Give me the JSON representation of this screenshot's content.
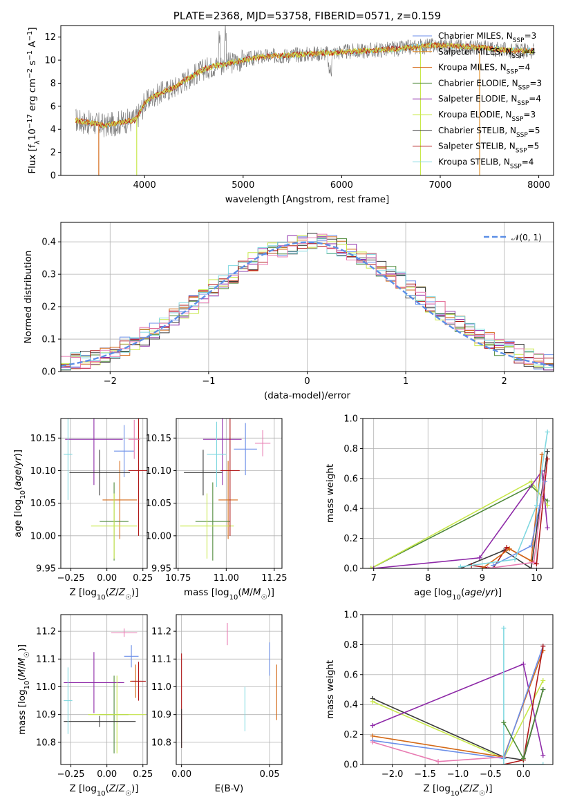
{
  "colors": {
    "chabrier_miles": "#6a8ee8",
    "salpeter_miles": "#e2902a",
    "kroupa_miles": "#d46a18",
    "chabrier_elodie": "#4f8a3a",
    "salpeter_elodie": "#8e2aa8",
    "kroupa_elodie": "#c8e84a",
    "chabrier_stelib": "#3a3a3a",
    "salpeter_stelib": "#b01818",
    "kroupa_stelib": "#7fd8e0",
    "pink": "#e87bb2",
    "gray_spec": "#808080",
    "gauss": "#5b8ee6"
  },
  "chart_data": [
    {
      "id": "spectrum",
      "type": "line",
      "title": "PLATE=2368, MJD=53758, FIBERID=0571, z=0.159",
      "xlabel": "wavelength [Angstrom, rest frame]",
      "ylabel": "Flux [f_λ 10^-17 erg cm^-2 s^-1 A^-1]",
      "xlim": [
        3150,
        8150
      ],
      "ylim": [
        0,
        13
      ],
      "xticks": [
        "4000",
        "5000",
        "6000",
        "7000",
        "8000"
      ],
      "yticks": [
        "0",
        "2",
        "4",
        "6",
        "8",
        "10",
        "12"
      ],
      "legend_position": "top-right",
      "legend": [
        {
          "label": "Chabrier MILES, N",
          "sub": "SSP",
          "tail": "=3",
          "color": "chabrier_miles"
        },
        {
          "label": "Salpeter MILES, N",
          "sub": "SSP",
          "tail": "=4",
          "color": "salpeter_miles"
        },
        {
          "label": "Kroupa MILES, N",
          "sub": "SSP",
          "tail": "=4",
          "color": "kroupa_miles"
        },
        {
          "label": "Chabrier ELODIE, N",
          "sub": "SSP",
          "tail": "=3",
          "color": "chabrier_elodie"
        },
        {
          "label": "Salpeter ELODIE, N",
          "sub": "SSP",
          "tail": "=4",
          "color": "salpeter_elodie"
        },
        {
          "label": "Kroupa ELODIE, N",
          "sub": "SSP",
          "tail": "=3",
          "color": "kroupa_elodie"
        },
        {
          "label": "Chabrier STELIB, N",
          "sub": "SSP",
          "tail": "=5",
          "color": "chabrier_stelib"
        },
        {
          "label": "Salpeter STELIB, N",
          "sub": "SSP",
          "tail": "=5",
          "color": "salpeter_stelib"
        },
        {
          "label": "Kroupa STELIB, N",
          "sub": "SSP",
          "tail": "=4",
          "color": "kroupa_stelib"
        }
      ],
      "continuum": {
        "x": [
          3300,
          3400,
          3500,
          3600,
          3700,
          3800,
          3900,
          3950,
          4000,
          4100,
          4200,
          4300,
          4400,
          4500,
          4600,
          4700,
          4800,
          4900,
          5000,
          5200,
          5400,
          5600,
          5800,
          6000,
          6200,
          6400,
          6600,
          6800,
          7000,
          7200,
          7400,
          7600,
          7800,
          7950
        ],
        "y": [
          4.8,
          4.6,
          4.5,
          4.3,
          4.5,
          4.7,
          4.8,
          5.4,
          6.3,
          6.9,
          7.3,
          7.6,
          8.2,
          8.7,
          9.2,
          9.5,
          9.6,
          9.8,
          10.0,
          10.3,
          10.4,
          10.5,
          10.6,
          10.7,
          10.8,
          10.9,
          11.0,
          11.2,
          11.3,
          11.2,
          11.1,
          10.9,
          10.8,
          10.8
        ]
      },
      "model_dropouts": [
        {
          "x": 3535,
          "y": 0,
          "color": "kroupa_miles"
        },
        {
          "x": 3920,
          "y": 0,
          "color": "kroupa_elodie"
        },
        {
          "x": 6800,
          "y": 0,
          "color": "kroupa_elodie"
        },
        {
          "x": 7400,
          "y": 0,
          "color": "salpeter_miles"
        }
      ]
    },
    {
      "id": "residuals",
      "type": "area",
      "xlabel": "(data-model)/error",
      "ylabel": "Normed distribution",
      "xlim": [
        -2.5,
        2.5
      ],
      "ylim": [
        0,
        0.46
      ],
      "xticks": [
        "−2",
        "−1",
        "0",
        "1",
        "2"
      ],
      "yticks": [
        "0.0",
        "0.1",
        "0.2",
        "0.3",
        "0.4"
      ],
      "grid": true,
      "legend_position": "top-right",
      "legend_label": "𝒩(0, 1)",
      "bin_width": 0.1,
      "series_colors": [
        "chabrier_miles",
        "kroupa_miles",
        "chabrier_elodie",
        "salpeter_elodie",
        "kroupa_elodie",
        "chabrier_stelib",
        "salpeter_stelib",
        "kroupa_stelib",
        "pink"
      ]
    },
    {
      "id": "age_vs_Z",
      "type": "scatter",
      "xlabel": "Z [log10(Z/Z☉)]",
      "ylabel": "age  [log10(age/yr)]",
      "xlim": [
        -0.32,
        0.28
      ],
      "ylim": [
        9.95,
        10.18
      ],
      "xticks": [
        "−0.25",
        "0.00",
        "0.25"
      ],
      "yticks": [
        "9.95",
        "10.00",
        "10.05",
        "10.10",
        "10.15"
      ],
      "grid": true,
      "points": [
        {
          "x": 0.12,
          "y": 10.13,
          "xerr": 0.07,
          "yerr": 0.04,
          "color": "chabrier_miles"
        },
        {
          "x": 0.09,
          "y": 10.055,
          "xerr": 0.12,
          "yerr": 0.06,
          "color": "kroupa_miles"
        },
        {
          "x": 0.05,
          "y": 10.022,
          "xerr": 0.1,
          "yerr": 0.06,
          "color": "chabrier_elodie"
        },
        {
          "x": -0.09,
          "y": 10.148,
          "xerr": 0.2,
          "yerr": 0.07,
          "color": "salpeter_elodie"
        },
        {
          "x": 0.05,
          "y": 10.015,
          "xerr": 0.16,
          "yerr": 0.05,
          "color": "kroupa_elodie"
        },
        {
          "x": -0.05,
          "y": 10.097,
          "xerr": 0.21,
          "yerr": 0.035,
          "color": "chabrier_stelib"
        },
        {
          "x": 0.22,
          "y": 10.1,
          "xerr": 0.07,
          "yerr": 0.1,
          "color": "salpeter_stelib"
        },
        {
          "x": -0.27,
          "y": 10.125,
          "xerr": 0.03,
          "yerr": 0.07,
          "color": "kroupa_stelib"
        },
        {
          "x": 0.19,
          "y": 10.148,
          "xerr": 0.04,
          "yerr": 0.03,
          "color": "pink"
        }
      ]
    },
    {
      "id": "age_vs_mass",
      "type": "scatter",
      "xlabel": "mass [log10(M/M☉)]",
      "ylabel": "",
      "xlim": [
        10.74,
        11.29
      ],
      "ylim": [
        9.95,
        10.18
      ],
      "xticks": [
        "10.75",
        "11.00",
        "11.25"
      ],
      "yticks": [
        "9.95",
        "10.00",
        "10.05",
        "10.10",
        "10.15"
      ],
      "grid": true,
      "points": [
        {
          "x": 11.1,
          "y": 10.133,
          "xerr": 0.06,
          "yerr": 0.04,
          "color": "chabrier_miles"
        },
        {
          "x": 11.01,
          "y": 10.055,
          "xerr": 0.05,
          "yerr": 0.06,
          "color": "kroupa_miles"
        },
        {
          "x": 10.93,
          "y": 10.022,
          "xerr": 0.09,
          "yerr": 0.06,
          "color": "chabrier_elodie"
        },
        {
          "x": 10.98,
          "y": 10.148,
          "xerr": 0.1,
          "yerr": 0.07,
          "color": "salpeter_elodie"
        },
        {
          "x": 10.9,
          "y": 10.015,
          "xerr": 0.14,
          "yerr": 0.05,
          "color": "kroupa_elodie"
        },
        {
          "x": 10.88,
          "y": 10.097,
          "xerr": 0.1,
          "yerr": 0.035,
          "color": "chabrier_stelib"
        },
        {
          "x": 11.02,
          "y": 10.1,
          "xerr": 0.05,
          "yerr": 0.1,
          "color": "salpeter_stelib"
        },
        {
          "x": 10.95,
          "y": 10.125,
          "xerr": 0.05,
          "yerr": 0.05,
          "color": "kroupa_stelib"
        },
        {
          "x": 11.19,
          "y": 10.142,
          "xerr": 0.04,
          "yerr": 0.02,
          "color": "pink"
        }
      ]
    },
    {
      "id": "weight_vs_age",
      "type": "line",
      "xlabel": "age  [log10(age/yr)]",
      "ylabel": "mass weight",
      "xlim": [
        6.8,
        10.3
      ],
      "ylim": [
        0,
        1.0
      ],
      "xticks": [
        "7",
        "8",
        "9",
        "10"
      ],
      "yticks": [
        "0.0",
        "0.2",
        "0.4",
        "0.6",
        "0.8",
        "1.0"
      ],
      "grid": true,
      "series": [
        {
          "color": "chabrier_elodie",
          "x": [
            6.95,
            9.9,
            10.2
          ],
          "y": [
            0.0,
            0.55,
            0.45
          ]
        },
        {
          "color": "kroupa_elodie",
          "x": [
            6.95,
            9.9,
            10.2
          ],
          "y": [
            0.0,
            0.58,
            0.42
          ]
        },
        {
          "color": "salpeter_elodie",
          "x": [
            7.0,
            8.95,
            10.1,
            10.2
          ],
          "y": [
            0.0,
            0.07,
            0.65,
            0.27
          ]
        },
        {
          "color": "chabrier_stelib",
          "x": [
            8.6,
            9.4,
            9.9,
            10.2
          ],
          "y": [
            0.0,
            0.12,
            0.0,
            0.78
          ]
        },
        {
          "color": "salpeter_stelib",
          "x": [
            8.8,
            9.2,
            9.45,
            10.0,
            10.2
          ],
          "y": [
            0.02,
            0.0,
            0.14,
            0.03,
            0.73
          ]
        },
        {
          "color": "kroupa_miles",
          "x": [
            9.0,
            9.5,
            9.9,
            10.1
          ],
          "y": [
            0.0,
            0.13,
            0.05,
            0.76
          ]
        },
        {
          "color": "chabrier_miles",
          "x": [
            9.2,
            9.9,
            10.15
          ],
          "y": [
            0.02,
            0.15,
            0.58
          ]
        },
        {
          "color": "kroupa_stelib",
          "x": [
            8.6,
            9.6,
            10.0,
            10.2
          ],
          "y": [
            0.01,
            0.06,
            0.42,
            0.91
          ]
        },
        {
          "color": "pink",
          "x": [
            9.1,
            9.95,
            10.15
          ],
          "y": [
            0.0,
            0.04,
            0.63
          ]
        }
      ]
    },
    {
      "id": "mass_vs_Z",
      "type": "scatter",
      "xlabel": "Z [log10(Z/Z☉)]",
      "ylabel": "mass [log10(M/M☉)]",
      "xlim": [
        -0.32,
        0.28
      ],
      "ylim": [
        10.72,
        11.26
      ],
      "xticks": [
        "−0.25",
        "0.00",
        "0.25"
      ],
      "yticks": [
        "10.8",
        "10.9",
        "11.0",
        "11.1",
        "11.2"
      ],
      "grid": true,
      "points": [
        {
          "x": 0.17,
          "y": 11.11,
          "xerr": 0.05,
          "yerr": 0.04,
          "color": "chabrier_miles"
        },
        {
          "x": 0.2,
          "y": 11.02,
          "xerr": 0.04,
          "yerr": 0.06,
          "color": "kroupa_miles"
        },
        {
          "x": 0.05,
          "y": 10.9,
          "xerr": 0.1,
          "yerr": 0.14,
          "color": "chabrier_elodie"
        },
        {
          "x": -0.09,
          "y": 11.015,
          "xerr": 0.21,
          "yerr": 0.11,
          "color": "salpeter_elodie"
        },
        {
          "x": 0.07,
          "y": 10.9,
          "xerr": 0.2,
          "yerr": 0.14,
          "color": "kroupa_elodie"
        },
        {
          "x": -0.05,
          "y": 10.875,
          "xerr": 0.25,
          "yerr": 0.02,
          "color": "chabrier_stelib"
        },
        {
          "x": 0.22,
          "y": 11.02,
          "xerr": 0.05,
          "yerr": 0.07,
          "color": "salpeter_stelib"
        },
        {
          "x": -0.27,
          "y": 10.95,
          "xerr": 0.03,
          "yerr": 0.12,
          "color": "kroupa_stelib"
        },
        {
          "x": 0.12,
          "y": 11.195,
          "xerr": 0.09,
          "yerr": 0.015,
          "color": "pink"
        }
      ]
    },
    {
      "id": "mass_vs_ebv",
      "type": "scatter",
      "xlabel": "E(B-V)",
      "ylabel": "",
      "xlim": [
        -0.003,
        0.057
      ],
      "ylim": [
        10.72,
        11.26
      ],
      "xticks": [
        "0.00",
        "0.05"
      ],
      "yticks": [
        "10.8",
        "10.9",
        "11.0",
        "11.1",
        "11.2"
      ],
      "grid": true,
      "points": [
        {
          "x": 0.0,
          "y": 10.95,
          "xerr": 0,
          "yerr": 0.17,
          "color": "salpeter_stelib"
        },
        {
          "x": 0.0,
          "y": 10.85,
          "xerr": 0,
          "yerr": 0.07,
          "color": "chabrier_stelib"
        },
        {
          "x": 0.026,
          "y": 11.19,
          "xerr": 0,
          "yerr": 0.04,
          "color": "pink"
        },
        {
          "x": 0.036,
          "y": 10.92,
          "xerr": 0,
          "yerr": 0.08,
          "color": "kroupa_stelib"
        },
        {
          "x": 0.05,
          "y": 11.1,
          "xerr": 0,
          "yerr": 0.06,
          "color": "chabrier_miles"
        },
        {
          "x": 0.054,
          "y": 10.98,
          "xerr": 0,
          "yerr": 0.1,
          "color": "kroupa_miles"
        }
      ]
    },
    {
      "id": "weight_vs_Z",
      "type": "line",
      "xlabel": "Z [log10(Z/Z☉)]",
      "ylabel": "mass weight",
      "xlim": [
        -2.45,
        0.45
      ],
      "ylim": [
        0,
        1.0
      ],
      "xticks": [
        "−2.0",
        "−1.5",
        "−1.0",
        "−0.5",
        "0.0"
      ],
      "yticks": [
        "0.0",
        "0.2",
        "0.4",
        "0.6",
        "0.8",
        "1.0"
      ],
      "grid": true,
      "series": [
        {
          "color": "chabrier_stelib",
          "x": [
            -2.3,
            -0.3,
            0.0,
            0.3
          ],
          "y": [
            0.44,
            0.05,
            0.03,
            0.5
          ]
        },
        {
          "color": "kroupa_elodie",
          "x": [
            -2.3,
            -0.3,
            0.3
          ],
          "y": [
            0.42,
            0.04,
            0.56
          ]
        },
        {
          "color": "salpeter_elodie",
          "x": [
            -2.3,
            0.0,
            0.3
          ],
          "y": [
            0.26,
            0.67,
            0.06
          ]
        },
        {
          "color": "kroupa_miles",
          "x": [
            -2.3,
            -0.3,
            0.3
          ],
          "y": [
            0.19,
            0.05,
            0.76
          ]
        },
        {
          "color": "chabrier_miles",
          "x": [
            -2.3,
            -0.3,
            0.3
          ],
          "y": [
            0.16,
            0.04,
            0.79
          ]
        },
        {
          "color": "pink",
          "x": [
            -2.3,
            -1.3,
            -0.3
          ],
          "y": [
            0.15,
            0.02,
            0.05
          ]
        },
        {
          "color": "salpeter_stelib",
          "x": [
            -0.3,
            0.0,
            0.3
          ],
          "y": [
            0.0,
            0.03,
            0.79
          ]
        },
        {
          "color": "kroupa_stelib",
          "x": [
            -0.3,
            -0.3,
            0.3
          ],
          "y": [
            0.91,
            0.0,
            0.0
          ]
        },
        {
          "color": "chabrier_elodie",
          "x": [
            -0.3,
            0.0,
            0.3
          ],
          "y": [
            0.28,
            0.04,
            0.5
          ]
        }
      ]
    }
  ]
}
